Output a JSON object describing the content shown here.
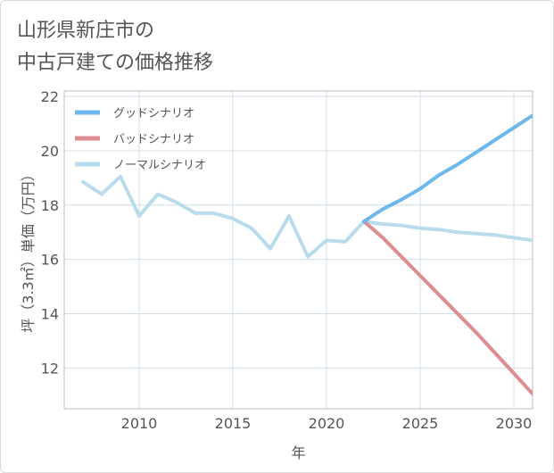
{
  "page": {
    "title_line1": "山形県新庄市の",
    "title_line2": "中古戸建ての価格推移"
  },
  "chart_data": {
    "type": "line",
    "title": "山形県新庄市の中古戸建ての価格推移",
    "xlabel": "年",
    "ylabel": "坪（3.3㎡）単価（万円）",
    "xlim": [
      2006,
      2031
    ],
    "ylim": [
      10.5,
      22.2
    ],
    "xticks": [
      2010,
      2015,
      2020,
      2025,
      2030
    ],
    "yticks": [
      12,
      14,
      16,
      18,
      20,
      22
    ],
    "grid": true,
    "legend_position": "top-left",
    "series": [
      {
        "name": "グッドシナリオ",
        "color": "#6cb8ec",
        "x": [
          2022,
          2023,
          2024,
          2025,
          2026,
          2027,
          2028,
          2029,
          2030,
          2031
        ],
        "values": [
          17.4,
          17.85,
          18.2,
          18.6,
          19.1,
          19.5,
          19.95,
          20.4,
          20.85,
          21.3
        ]
      },
      {
        "name": "バッドシナリオ",
        "color": "#dd8c90",
        "x": [
          2022,
          2023,
          2024,
          2025,
          2026,
          2027,
          2028,
          2029,
          2030,
          2031
        ],
        "values": [
          17.4,
          16.8,
          16.1,
          15.4,
          14.7,
          14.0,
          13.3,
          12.55,
          11.8,
          11.05
        ]
      },
      {
        "name": "ノーマルシナリオ",
        "color": "#b8dcec",
        "x": [
          2007,
          2008,
          2009,
          2010,
          2011,
          2012,
          2013,
          2014,
          2015,
          2016,
          2017,
          2018,
          2019,
          2020,
          2021,
          2022,
          2023,
          2024,
          2025,
          2026,
          2027,
          2028,
          2029,
          2030,
          2031
        ],
        "values": [
          18.85,
          18.4,
          19.05,
          17.6,
          18.4,
          18.1,
          17.7,
          17.7,
          17.5,
          17.15,
          16.4,
          17.6,
          16.1,
          16.7,
          16.65,
          17.4,
          17.3,
          17.25,
          17.15,
          17.1,
          17.0,
          16.95,
          16.9,
          16.8,
          16.7
        ]
      }
    ]
  }
}
